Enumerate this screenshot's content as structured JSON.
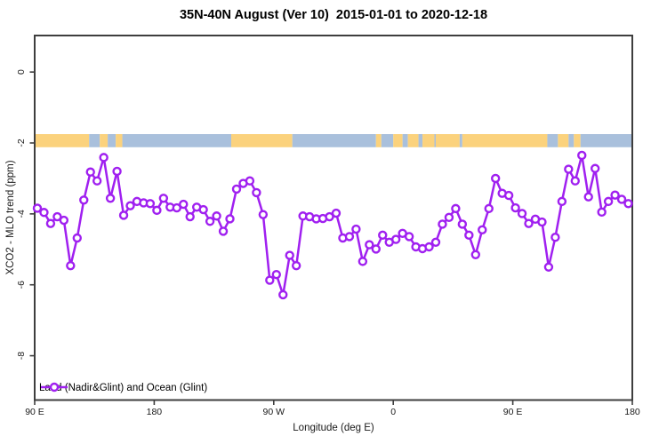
{
  "title": "35N-40N August (Ver 10)  2015-01-01 to 2020-12-18",
  "legend": {
    "label": "Land (Nadir&Glint) and Ocean (Glint)"
  },
  "colors": {
    "series": "#A020F0",
    "marker_fill": "#ffffff",
    "land_band": "#FBD27D",
    "ocean_band": "#A9C0DC",
    "frame": "#3E3E3E",
    "text": "#1A1A1A"
  },
  "chart_data": {
    "type": "line",
    "title": "35N-40N August (Ver 10)  2015-01-01 to 2020-12-18",
    "xlabel": "Longitude (deg E)",
    "ylabel": "XCO2 - MLO trend (ppm)",
    "xlim": [
      90,
      540
    ],
    "ylim": [
      -9.25,
      1.03
    ],
    "grid": false,
    "legend_position": "bottom-left",
    "x_ticks": [
      {
        "lon": 90,
        "label": "90 E"
      },
      {
        "lon": 180,
        "label": "180"
      },
      {
        "lon": 270,
        "label": "90 W"
      },
      {
        "lon": 360,
        "label": "0"
      },
      {
        "lon": 450,
        "label": "90 E"
      },
      {
        "lon": 540,
        "label": "180"
      }
    ],
    "y_ticks": [
      0,
      -2,
      -4,
      -6,
      -8
    ],
    "x_start": 92,
    "x_step": 5,
    "series": [
      {
        "name": "Land (Nadir&Glint) and Ocean (Glint)",
        "marker": "open-circle",
        "color": "#A020F0",
        "values": [
          -3.84,
          -3.96,
          -4.27,
          -4.08,
          -4.18,
          -5.46,
          -4.68,
          -3.61,
          -2.82,
          -3.07,
          -2.41,
          -3.56,
          -2.8,
          -4.04,
          -3.77,
          -3.65,
          -3.69,
          -3.71,
          -3.9,
          -3.56,
          -3.81,
          -3.83,
          -3.73,
          -4.08,
          -3.81,
          -3.88,
          -4.21,
          -4.06,
          -4.49,
          -4.14,
          -3.3,
          -3.14,
          -3.07,
          -3.4,
          -4.02,
          -5.87,
          -5.71,
          -6.28,
          -5.17,
          -5.46,
          -4.06,
          -4.08,
          -4.14,
          -4.13,
          -4.08,
          -3.98,
          -4.68,
          -4.64,
          -4.43,
          -5.34,
          -4.87,
          -4.99,
          -4.6,
          -4.8,
          -4.72,
          -4.55,
          -4.64,
          -4.93,
          -4.98,
          -4.93,
          -4.8,
          -4.29,
          -4.1,
          -3.85,
          -4.29,
          -4.6,
          -5.15,
          -4.45,
          -3.85,
          -3.0,
          -3.42,
          -3.48,
          -3.83,
          -3.99,
          -4.27,
          -4.15,
          -4.23,
          -5.5,
          -4.66,
          -3.65,
          -2.74,
          -3.07,
          -2.35,
          -3.52,
          -2.72,
          -3.95,
          -3.65,
          -3.47,
          -3.59,
          -3.71
        ]
      }
    ],
    "surface_band": {
      "description": "land/ocean surface-type strip",
      "y_top_value": -1.75,
      "y_bottom_value": -2.12,
      "segments": [
        {
          "from": 90,
          "to": 131,
          "type": "land"
        },
        {
          "from": 131,
          "to": 139,
          "type": "ocean"
        },
        {
          "from": 139,
          "to": 145,
          "type": "land"
        },
        {
          "from": 145,
          "to": 151,
          "type": "ocean"
        },
        {
          "from": 151,
          "to": 156,
          "type": "land"
        },
        {
          "from": 156,
          "to": 238,
          "type": "ocean"
        },
        {
          "from": 238,
          "to": 284,
          "type": "land"
        },
        {
          "from": 284,
          "to": 347,
          "type": "ocean"
        },
        {
          "from": 347,
          "to": 351,
          "type": "land"
        },
        {
          "from": 351,
          "to": 360,
          "type": "ocean"
        },
        {
          "from": 360,
          "to": 367,
          "type": "land"
        },
        {
          "from": 367,
          "to": 371,
          "type": "ocean"
        },
        {
          "from": 371,
          "to": 379,
          "type": "land"
        },
        {
          "from": 379,
          "to": 382,
          "type": "ocean"
        },
        {
          "from": 382,
          "to": 391,
          "type": "land"
        },
        {
          "from": 391,
          "to": 392,
          "type": "ocean"
        },
        {
          "from": 392,
          "to": 410,
          "type": "land"
        },
        {
          "from": 410,
          "to": 412,
          "type": "ocean"
        },
        {
          "from": 412,
          "to": 476,
          "type": "land"
        },
        {
          "from": 476,
          "to": 484,
          "type": "ocean"
        },
        {
          "from": 484,
          "to": 492,
          "type": "land"
        },
        {
          "from": 492,
          "to": 496,
          "type": "ocean"
        },
        {
          "from": 496,
          "to": 501,
          "type": "land"
        },
        {
          "from": 501,
          "to": 540,
          "type": "ocean"
        }
      ]
    }
  }
}
